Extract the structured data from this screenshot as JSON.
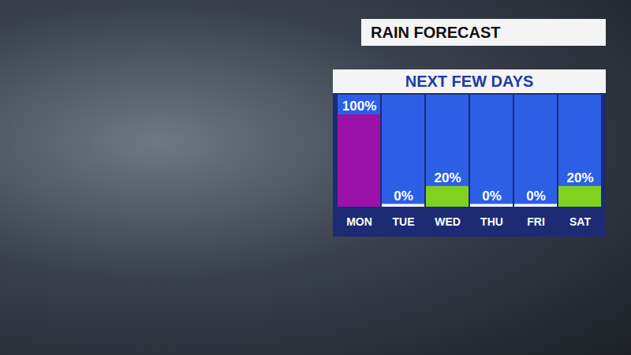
{
  "chart_data": {
    "type": "bar",
    "title": "RAIN FORECAST",
    "subtitle": "NEXT FEW DAYS",
    "categories": [
      "MON",
      "TUE",
      "WED",
      "THU",
      "FRI",
      "SAT"
    ],
    "values": [
      100,
      0,
      20,
      0,
      0,
      20
    ],
    "value_labels": [
      "100%",
      "0%",
      "20%",
      "0%",
      "0%",
      "20%"
    ],
    "colors": [
      "#9c12a8",
      "#ffffff",
      "#7fd320",
      "#ffffff",
      "#ffffff",
      "#7fd320"
    ],
    "ylim": [
      0,
      125
    ],
    "data_labels": true,
    "tick_labels": "x",
    "grid": false
  }
}
